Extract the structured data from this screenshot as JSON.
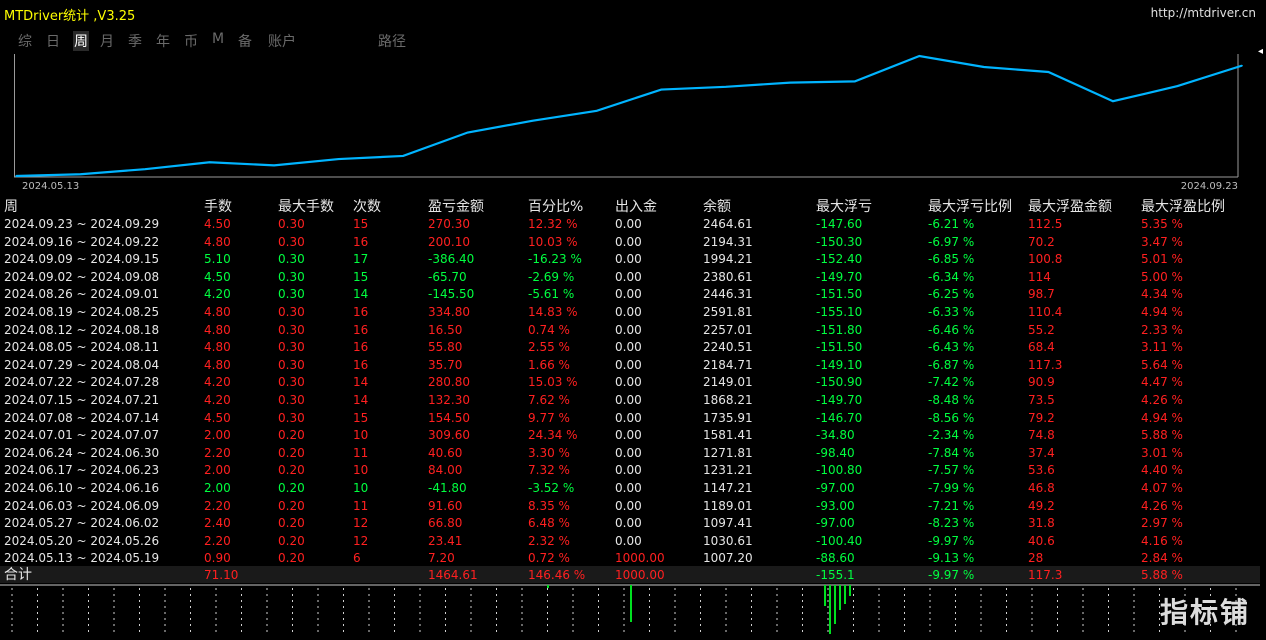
{
  "window": {
    "title": "MTDriver统计 ,V3.25",
    "url": "http://mtdriver.cn"
  },
  "tabs": [
    {
      "label": "综",
      "active": false
    },
    {
      "label": "日",
      "active": false
    },
    {
      "label": "周",
      "active": true
    },
    {
      "label": "月",
      "active": false
    },
    {
      "label": "季",
      "active": false
    },
    {
      "label": "年",
      "active": false
    },
    {
      "label": "币",
      "active": false
    },
    {
      "label": "M",
      "active": false
    },
    {
      "label": "备",
      "active": false
    },
    {
      "label": "账户",
      "active": false
    },
    {
      "label": "路径",
      "active": false
    }
  ],
  "chart_data": {
    "type": "line",
    "title": "",
    "x_start_label": "2024.05.13",
    "x_end_label": "2024.09.23",
    "x": [
      "2024.05.13",
      "2024.05.20",
      "2024.05.27",
      "2024.06.03",
      "2024.06.10",
      "2024.06.17",
      "2024.06.24",
      "2024.07.01",
      "2024.07.08",
      "2024.07.15",
      "2024.07.22",
      "2024.07.29",
      "2024.08.05",
      "2024.08.12",
      "2024.08.19",
      "2024.08.26",
      "2024.09.02",
      "2024.09.09",
      "2024.09.16",
      "2024.09.23"
    ],
    "series": [
      {
        "values": [
          1007.2,
          1030.61,
          1097.41,
          1189.01,
          1147.21,
          1231.21,
          1271.81,
          1581.41,
          1735.91,
          1868.21,
          2149.01,
          2184.71,
          2240.51,
          2257.01,
          2591.81,
          2446.31,
          2380.61,
          1994.21,
          2194.31,
          2464.61
        ]
      }
    ],
    "color": "#00b4ff",
    "grid": false
  },
  "table": {
    "headers": [
      "周",
      "手数",
      "最大手数",
      "次数",
      "盈亏金额",
      "百分比%",
      "出入金",
      "余额",
      "最大浮亏",
      "最大浮亏比例",
      "最大浮盈金额",
      "最大浮盈比例"
    ],
    "rows": [
      [
        "2024.09.23 ~ 2024.09.29",
        "4.50",
        "0.30",
        "15",
        "270.30",
        "12.32 %",
        "0.00",
        "2464.61",
        "-147.60",
        "-6.21 %",
        "112.5",
        "5.35 %"
      ],
      [
        "2024.09.16 ~ 2024.09.22",
        "4.80",
        "0.30",
        "16",
        "200.10",
        "10.03 %",
        "0.00",
        "2194.31",
        "-150.30",
        "-6.97 %",
        "70.2",
        "3.47 %"
      ],
      [
        "2024.09.09 ~ 2024.09.15",
        "5.10",
        "0.30",
        "17",
        "-386.40",
        "-16.23 %",
        "0.00",
        "1994.21",
        "-152.40",
        "-6.85 %",
        "100.8",
        "5.01 %"
      ],
      [
        "2024.09.02 ~ 2024.09.08",
        "4.50",
        "0.30",
        "15",
        "-65.70",
        "-2.69 %",
        "0.00",
        "2380.61",
        "-149.70",
        "-6.34 %",
        "114",
        "5.00 %"
      ],
      [
        "2024.08.26 ~ 2024.09.01",
        "4.20",
        "0.30",
        "14",
        "-145.50",
        "-5.61 %",
        "0.00",
        "2446.31",
        "-151.50",
        "-6.25 %",
        "98.7",
        "4.34 %"
      ],
      [
        "2024.08.19 ~ 2024.08.25",
        "4.80",
        "0.30",
        "16",
        "334.80",
        "14.83 %",
        "0.00",
        "2591.81",
        "-155.10",
        "-6.33 %",
        "110.4",
        "4.94 %"
      ],
      [
        "2024.08.12 ~ 2024.08.18",
        "4.80",
        "0.30",
        "16",
        "16.50",
        "0.74 %",
        "0.00",
        "2257.01",
        "-151.80",
        "-6.46 %",
        "55.2",
        "2.33 %"
      ],
      [
        "2024.08.05 ~ 2024.08.11",
        "4.80",
        "0.30",
        "16",
        "55.80",
        "2.55 %",
        "0.00",
        "2240.51",
        "-151.50",
        "-6.43 %",
        "68.4",
        "3.11 %"
      ],
      [
        "2024.07.29 ~ 2024.08.04",
        "4.80",
        "0.30",
        "16",
        "35.70",
        "1.66 %",
        "0.00",
        "2184.71",
        "-149.10",
        "-6.87 %",
        "117.3",
        "5.64 %"
      ],
      [
        "2024.07.22 ~ 2024.07.28",
        "4.20",
        "0.30",
        "14",
        "280.80",
        "15.03 %",
        "0.00",
        "2149.01",
        "-150.90",
        "-7.42 %",
        "90.9",
        "4.47 %"
      ],
      [
        "2024.07.15 ~ 2024.07.21",
        "4.20",
        "0.30",
        "14",
        "132.30",
        "7.62 %",
        "0.00",
        "1868.21",
        "-149.70",
        "-8.48 %",
        "73.5",
        "4.26 %"
      ],
      [
        "2024.07.08 ~ 2024.07.14",
        "4.50",
        "0.30",
        "15",
        "154.50",
        "9.77 %",
        "0.00",
        "1735.91",
        "-146.70",
        "-8.56 %",
        "79.2",
        "4.94 %"
      ],
      [
        "2024.07.01 ~ 2024.07.07",
        "2.00",
        "0.20",
        "10",
        "309.60",
        "24.34 %",
        "0.00",
        "1581.41",
        "-34.80",
        "-2.34 %",
        "74.8",
        "5.88 %"
      ],
      [
        "2024.06.24 ~ 2024.06.30",
        "2.20",
        "0.20",
        "11",
        "40.60",
        "3.30 %",
        "0.00",
        "1271.81",
        "-98.40",
        "-7.84 %",
        "37.4",
        "3.01 %"
      ],
      [
        "2024.06.17 ~ 2024.06.23",
        "2.00",
        "0.20",
        "10",
        "84.00",
        "7.32 %",
        "0.00",
        "1231.21",
        "-100.80",
        "-7.57 %",
        "53.6",
        "4.40 %"
      ],
      [
        "2024.06.10 ~ 2024.06.16",
        "2.00",
        "0.20",
        "10",
        "-41.80",
        "-3.52 %",
        "0.00",
        "1147.21",
        "-97.00",
        "-7.99 %",
        "46.8",
        "4.07 %"
      ],
      [
        "2024.06.03 ~ 2024.06.09",
        "2.20",
        "0.20",
        "11",
        "91.60",
        "8.35 %",
        "0.00",
        "1189.01",
        "-93.00",
        "-7.21 %",
        "49.2",
        "4.26 %"
      ],
      [
        "2024.05.27 ~ 2024.06.02",
        "2.40",
        "0.20",
        "12",
        "66.80",
        "6.48 %",
        "0.00",
        "1097.41",
        "-97.00",
        "-8.23 %",
        "31.8",
        "2.97 %"
      ],
      [
        "2024.05.20 ~ 2024.05.26",
        "2.20",
        "0.20",
        "12",
        "23.41",
        "2.32 %",
        "0.00",
        "1030.61",
        "-100.40",
        "-9.97 %",
        "40.6",
        "4.16 %"
      ],
      [
        "2024.05.13 ~ 2024.05.19",
        "0.90",
        "0.20",
        "6",
        "7.20",
        "0.72 %",
        "1000.00",
        "1007.20",
        "-88.60",
        "-9.13 %",
        "28",
        "2.84 %"
      ]
    ],
    "total": [
      "合计",
      "71.10",
      "",
      "",
      "1464.61",
      "146.46 %",
      "1000.00",
      "",
      "-155.1",
      "-9.97 %",
      "117.3",
      "5.88 %"
    ]
  },
  "colors": {
    "positive": "#ff2020",
    "negative": "#00ff40",
    "neutral": "#e6e6e6",
    "title": "#ffff00",
    "line": "#00b4ff"
  },
  "watermark": "指标铺"
}
